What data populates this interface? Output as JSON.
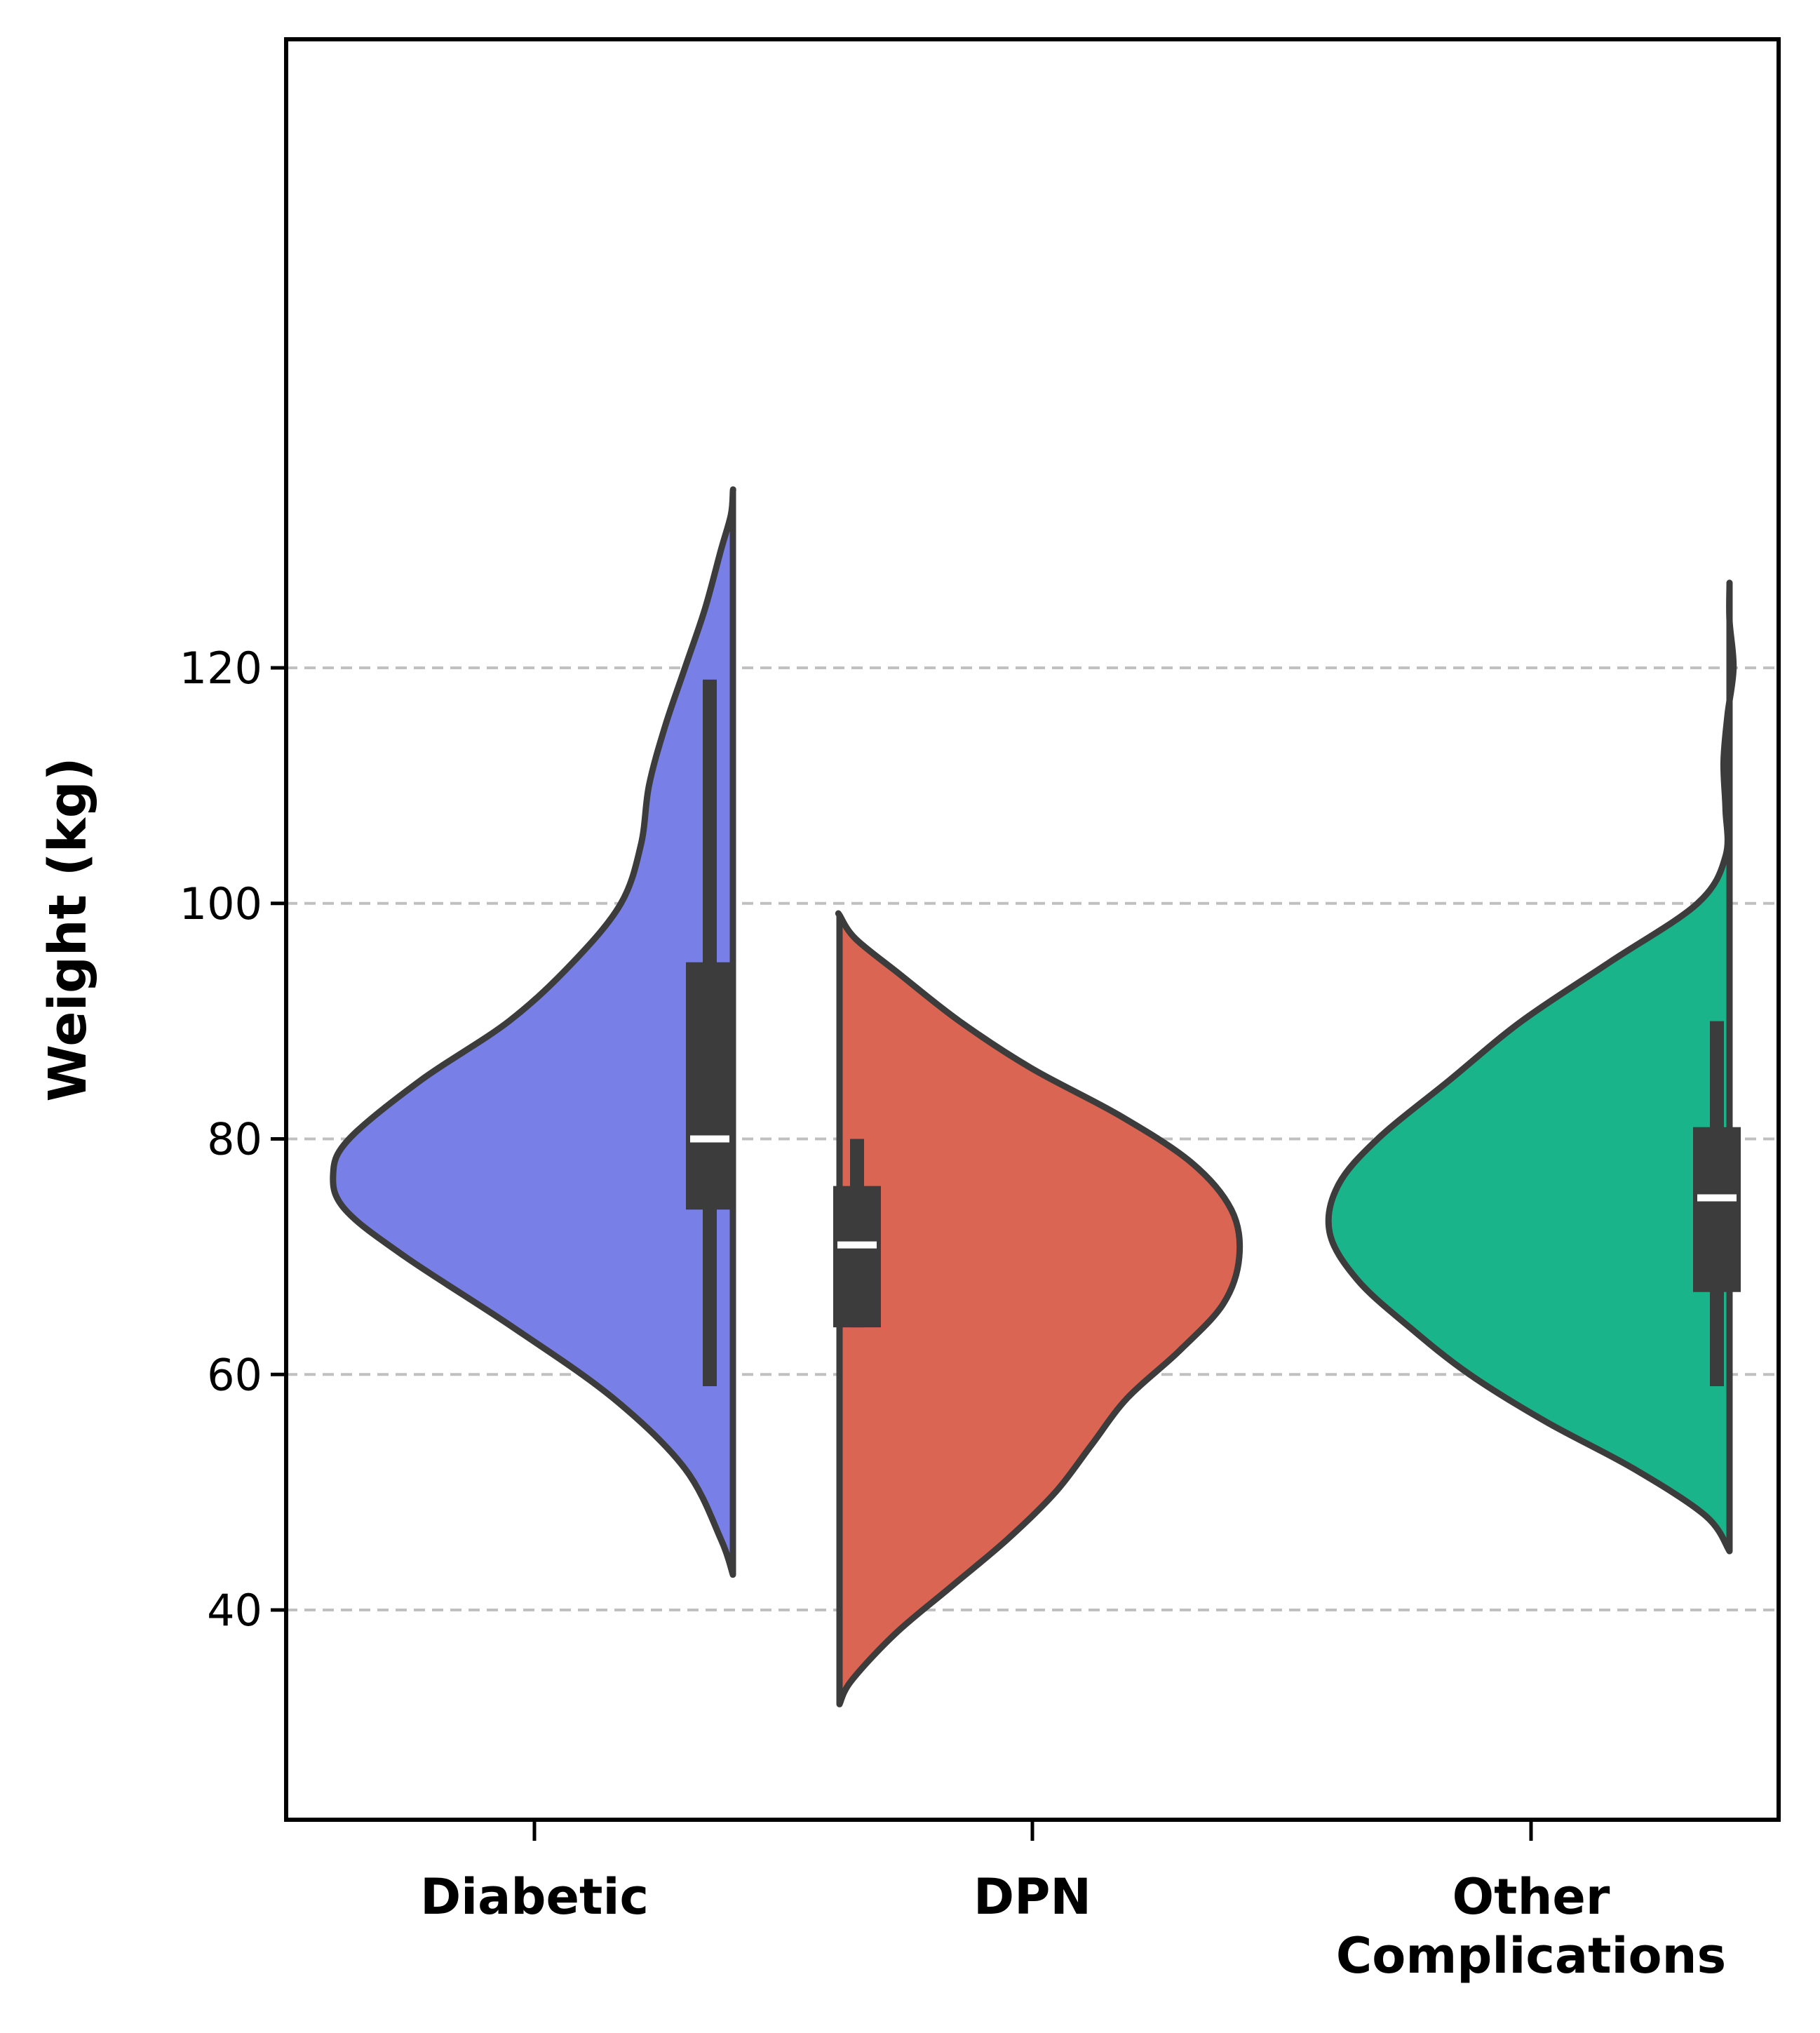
{
  "chart_data": {
    "type": "violin",
    "ylabel": "Weight (kg)",
    "ylim": [
      27,
      140
    ],
    "yticks": [
      40,
      60,
      80,
      100,
      120
    ],
    "grid": "horizontal dashed",
    "categories": [
      {
        "label_lines": [
          "Diabetic"
        ],
        "side": "left",
        "color": "#7880e8",
        "min": 43,
        "max": 135,
        "q1": 74,
        "median": 80,
        "q3": 95,
        "whisker_low": 59,
        "whisker_high": 119,
        "density": [
          [
            43,
            0
          ],
          [
            46,
            0.03
          ],
          [
            52,
            0.12
          ],
          [
            58,
            0.3
          ],
          [
            64,
            0.55
          ],
          [
            70,
            0.82
          ],
          [
            74,
            0.97
          ],
          [
            77,
            1.0
          ],
          [
            80,
            0.96
          ],
          [
            85,
            0.78
          ],
          [
            90,
            0.56
          ],
          [
            95,
            0.4
          ],
          [
            100,
            0.28
          ],
          [
            105,
            0.23
          ],
          [
            110,
            0.21
          ],
          [
            115,
            0.17
          ],
          [
            120,
            0.12
          ],
          [
            125,
            0.07
          ],
          [
            130,
            0.03
          ],
          [
            133,
            0.005
          ],
          [
            135,
            0
          ]
        ]
      },
      {
        "label_lines": [
          "DPN"
        ],
        "side": "right",
        "color": "#da6553",
        "min": 32,
        "max": 99,
        "q1": 64,
        "median": 71,
        "q3": 76,
        "whisker_low": 64,
        "whisker_high": 80,
        "density": [
          [
            32,
            0
          ],
          [
            34,
            0.03
          ],
          [
            38,
            0.14
          ],
          [
            42,
            0.28
          ],
          [
            46,
            0.42
          ],
          [
            50,
            0.54
          ],
          [
            54,
            0.63
          ],
          [
            58,
            0.72
          ],
          [
            62,
            0.85
          ],
          [
            66,
            0.96
          ],
          [
            70,
            1.0
          ],
          [
            74,
            0.98
          ],
          [
            78,
            0.88
          ],
          [
            82,
            0.7
          ],
          [
            86,
            0.48
          ],
          [
            90,
            0.3
          ],
          [
            94,
            0.15
          ],
          [
            97,
            0.04
          ],
          [
            99,
            0
          ]
        ]
      },
      {
        "label_lines": [
          "Other",
          "Complications"
        ],
        "side": "left",
        "color": "#1ab48a",
        "min": 45,
        "max": 127,
        "q1": 67,
        "median": 75,
        "q3": 81,
        "whisker_low": 59,
        "whisker_high": 90,
        "density": [
          [
            45,
            0
          ],
          [
            48,
            0.06
          ],
          [
            52,
            0.24
          ],
          [
            56,
            0.46
          ],
          [
            60,
            0.65
          ],
          [
            64,
            0.8
          ],
          [
            68,
            0.93
          ],
          [
            72,
            1.0
          ],
          [
            76,
            0.98
          ],
          [
            80,
            0.88
          ],
          [
            85,
            0.7
          ],
          [
            90,
            0.52
          ],
          [
            95,
            0.3
          ],
          [
            100,
            0.08
          ],
          [
            104,
            0.01
          ],
          [
            108,
            0.01
          ],
          [
            112,
            0.015
          ],
          [
            116,
            0.005
          ],
          [
            120,
            -0.01
          ],
          [
            124,
            0
          ],
          [
            127,
            0
          ]
        ]
      }
    ]
  },
  "colors": {
    "outline": "#3c3c3c",
    "grid": "#c0c0c0",
    "median": "#ffffff"
  }
}
